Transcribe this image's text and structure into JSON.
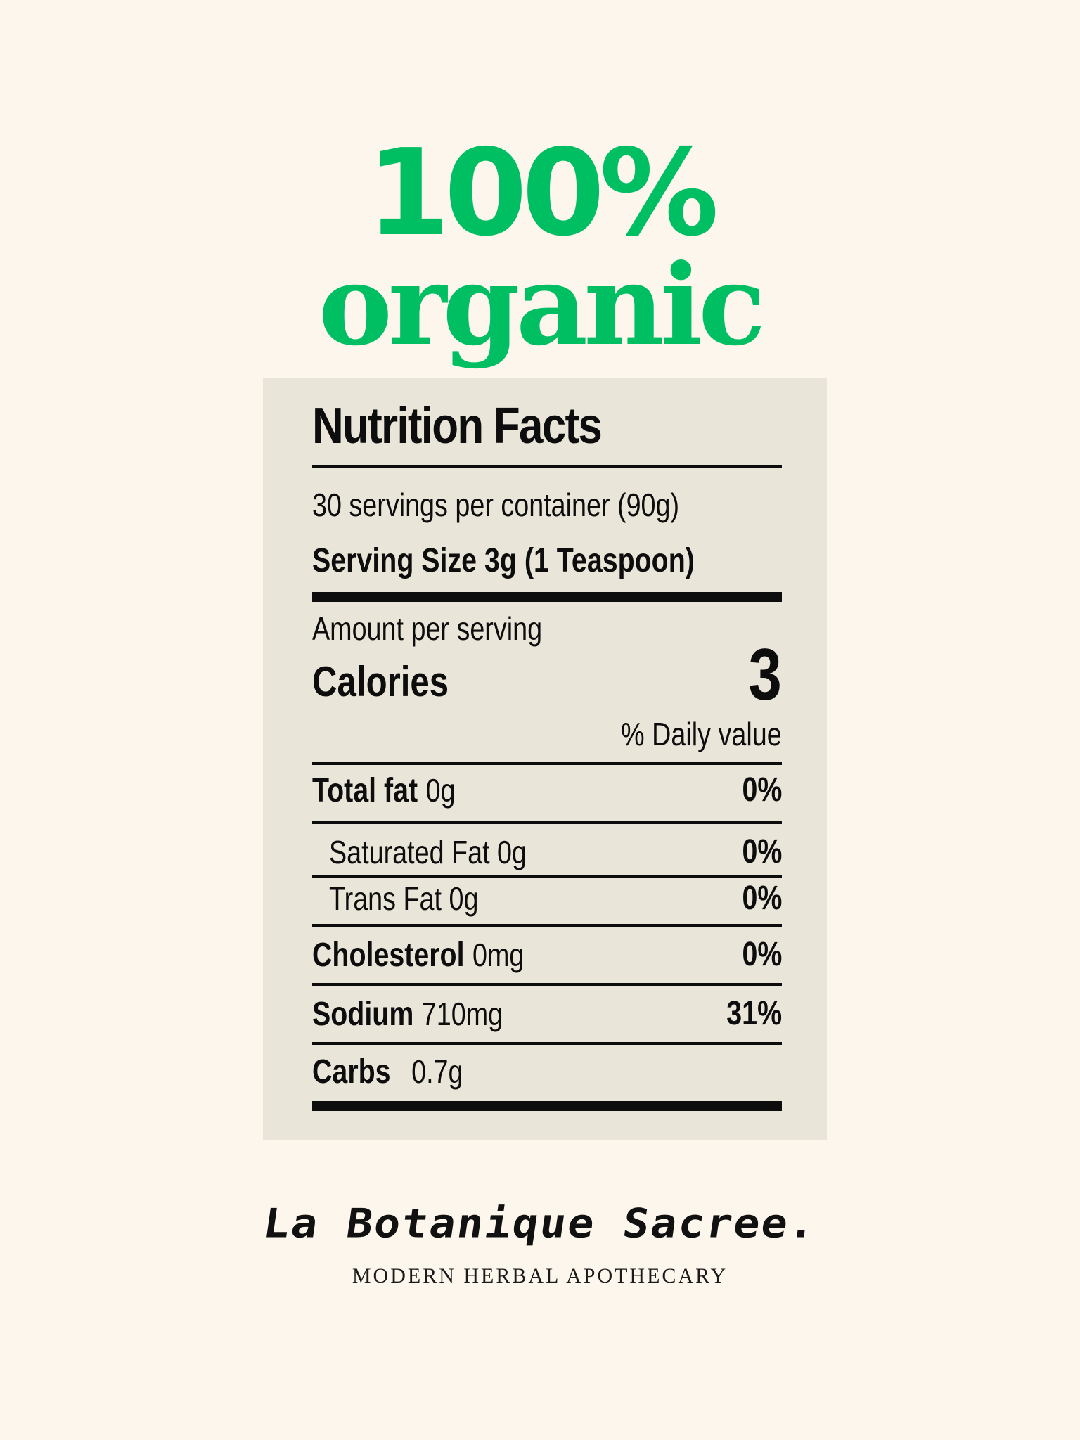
{
  "headline": {
    "percent": "100%",
    "word": "organic"
  },
  "nutrition": {
    "title": "Nutrition Facts",
    "servings_per_container": "30 servings per container (90g)",
    "serving_size": "Serving Size 3g (1 Teaspoon)",
    "amount_per_serving": "Amount per serving",
    "calories_label": "Calories",
    "calories_value": "3",
    "daily_value_header": "% Daily value",
    "rows": [
      {
        "name": "Total fat",
        "amount": "0g",
        "percent": "0%"
      },
      {
        "name": "",
        "amount": "Saturated Fat 0g",
        "percent": "0%"
      },
      {
        "name": "",
        "amount": "Trans Fat 0g",
        "percent": "0%"
      },
      {
        "name": "Cholesterol",
        "amount": "0mg",
        "percent": "0%"
      },
      {
        "name": "Sodium",
        "amount": "710mg",
        "percent": "31%"
      },
      {
        "name": "Carbs",
        "amount": "0.7g",
        "percent": ""
      }
    ]
  },
  "brand": {
    "name": "La Botanique Sacree.",
    "tagline": "MODERN HERBAL APOTHECARY"
  },
  "colors": {
    "background": "#fdf6ec",
    "headline_green": "#00bf63",
    "panel": "#eae5d9",
    "ink": "#0d0d0d"
  }
}
